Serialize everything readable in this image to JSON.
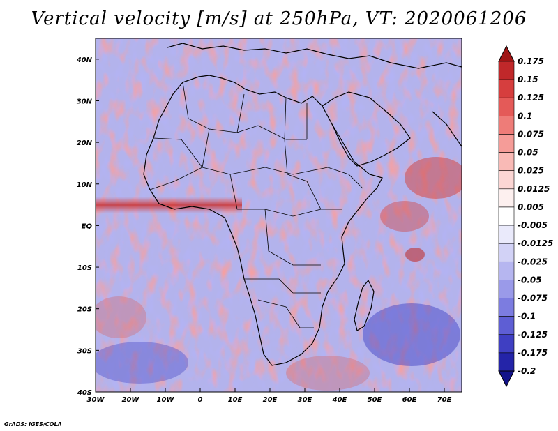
{
  "title": "Vertical velocity [m/s] at 250hPa, VT: 2020061206",
  "credit": "GrADS: IGES/COLA",
  "map": {
    "lon_range": [
      -30,
      75
    ],
    "lat_range": [
      -40,
      45
    ],
    "x_ticks": [
      "30W",
      "20W",
      "10W",
      "0",
      "10E",
      "20E",
      "30E",
      "40E",
      "50E",
      "60E",
      "70E"
    ],
    "y_ticks": [
      "40N",
      "30N",
      "20N",
      "10N",
      "EQ",
      "10S",
      "20S",
      "30S",
      "40S"
    ],
    "field": "vertical velocity",
    "units": "m/s",
    "level": "250hPa"
  },
  "colorbar": {
    "labels": [
      "0.175",
      "0.15",
      "0.125",
      "0.1",
      "0.075",
      "0.05",
      "0.025",
      "0.0125",
      "0.005",
      "-0.005",
      "-0.0125",
      "-0.025",
      "-0.05",
      "-0.075",
      "-0.1",
      "-0.125",
      "-0.175",
      "-0.2"
    ],
    "colors": [
      "#a01414",
      "#c0282a",
      "#d63e3e",
      "#e45a58",
      "#ee7c78",
      "#f59c98",
      "#f9bab6",
      "#fcd6d4",
      "#fdf0ef",
      "#ffffff",
      "#eaeafb",
      "#d2d2f6",
      "#b6b6f0",
      "#9a9ae9",
      "#7c7ce0",
      "#5e5ed4",
      "#3f3fc2",
      "#2424a8",
      "#12128a"
    ]
  }
}
